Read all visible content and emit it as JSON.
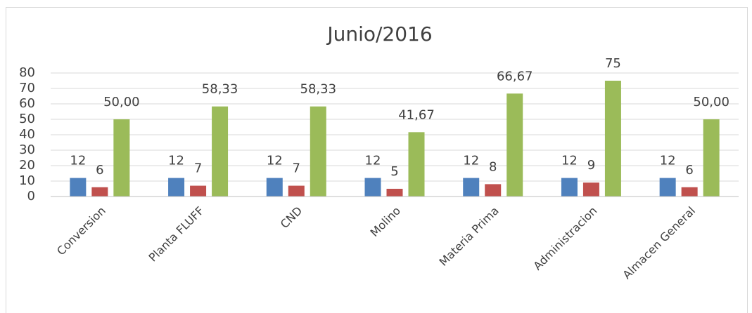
{
  "chart_data": {
    "type": "bar",
    "title": "Junio/2016",
    "categories": [
      "Conversion",
      "Planta FLUFF",
      "CND",
      "Molino",
      "Materia Prima",
      "Administracion",
      "Almacen General"
    ],
    "series": [
      {
        "color": "#4f81bd",
        "values": [
          12,
          12,
          12,
          12,
          12,
          12,
          12
        ]
      },
      {
        "color": "#c0504d",
        "values": [
          6,
          7,
          7,
          5,
          8,
          9,
          6
        ]
      },
      {
        "color": "#9bbb59",
        "values": [
          50,
          58.33,
          58.33,
          41.67,
          66.67,
          75,
          50
        ],
        "value_labels": [
          "50,00",
          "58,33",
          "58,33",
          "41,67",
          "66,67",
          "75",
          "50,00"
        ]
      }
    ],
    "ylim": [
      0,
      80
    ],
    "yticks": [
      0,
      10,
      20,
      30,
      40,
      50,
      60,
      70,
      80
    ],
    "grid": true
  }
}
